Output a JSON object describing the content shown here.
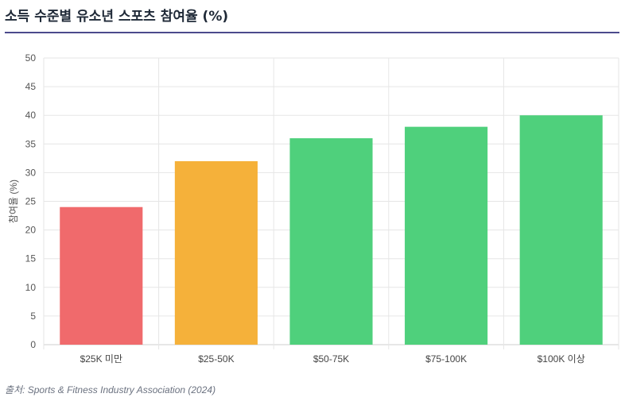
{
  "header": {
    "title": "소득 수준별 유소년 스포츠 참여율 (%)"
  },
  "chart_data": {
    "type": "bar",
    "title": "",
    "xlabel": "",
    "ylabel": "참여율 (%)",
    "ylim": [
      0,
      50
    ],
    "yticks": [
      0,
      5,
      10,
      15,
      20,
      25,
      30,
      35,
      40,
      45,
      50
    ],
    "grid": true,
    "categories": [
      "$25K 미만",
      "$25-50K",
      "$50-75K",
      "$75-100K",
      "$100K 이상"
    ],
    "values": [
      24,
      32,
      36,
      38,
      40
    ],
    "colors": [
      "#f06a6c",
      "#f5b13a",
      "#4fd07c",
      "#4fd07c",
      "#4fd07c"
    ]
  },
  "footer": {
    "source": "출처: Sports & Fitness Industry Association (2024)"
  }
}
